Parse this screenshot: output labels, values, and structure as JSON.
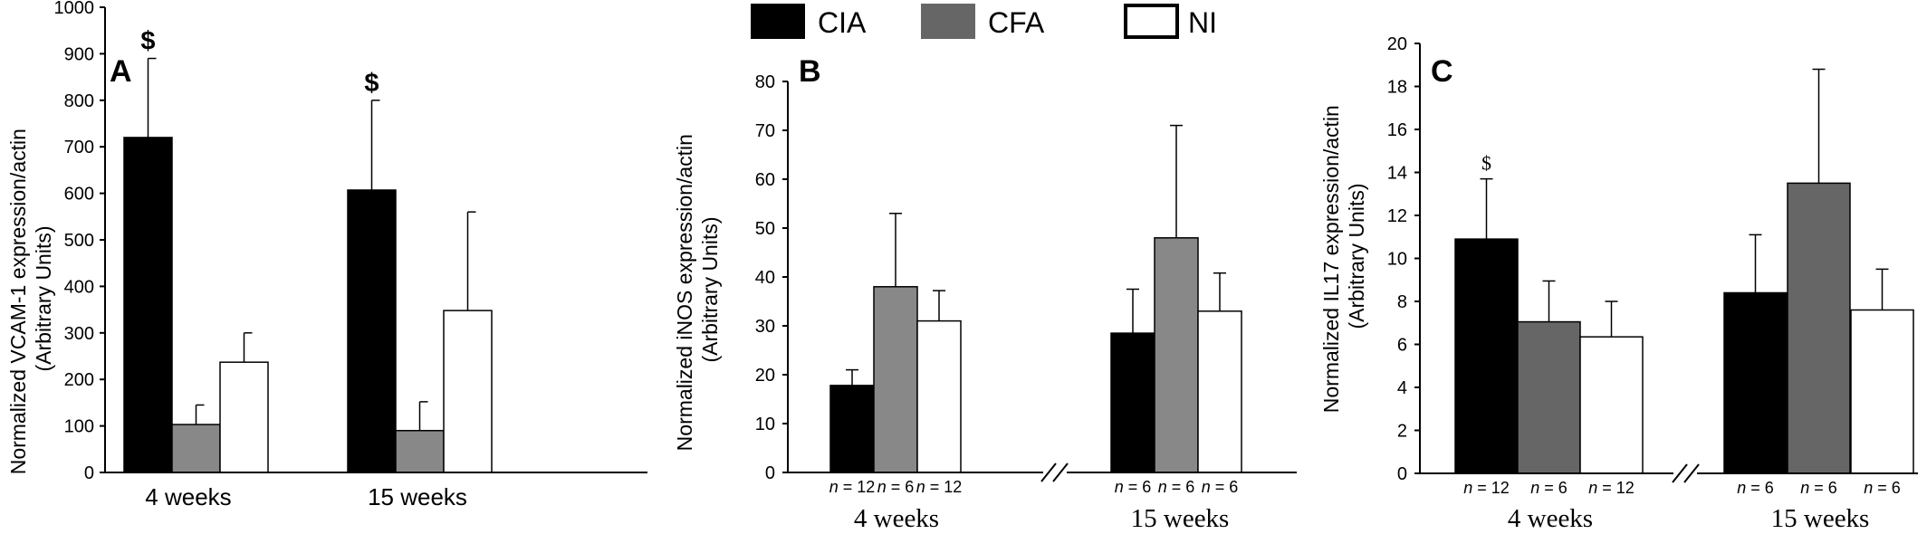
{
  "legend": [
    {
      "label": "CIA",
      "color": "#000000"
    },
    {
      "label": "CFA",
      "color": "#666666"
    },
    {
      "label": "NI",
      "color": "#ffffff"
    }
  ],
  "chart_data": [
    {
      "type": "bar",
      "panel": "A",
      "ylabel_lines": [
        "Normalized VCAM-1 expression/actin",
        "(Arbitrary Units)"
      ],
      "ylim": [
        0,
        1000
      ],
      "yticks": [
        "0",
        "100",
        "200",
        "300",
        "400",
        "500",
        "600",
        "700",
        "800",
        "900",
        "1000"
      ],
      "categories": [
        "4 weeks",
        "15 weeks"
      ],
      "series": [
        {
          "name": "CIA",
          "color": "#000000",
          "values": [
            720,
            607
          ],
          "errors": [
            170,
            193
          ]
        },
        {
          "name": "CFA",
          "color": "#888888",
          "values": [
            103,
            90
          ],
          "errors": [
            42,
            62
          ]
        },
        {
          "name": "NI",
          "color": "#ffffff",
          "values": [
            237,
            348
          ],
          "errors": [
            63,
            212
          ]
        }
      ],
      "significance": [
        {
          "category": 0,
          "series": 0,
          "symbol": "$"
        },
        {
          "category": 1,
          "series": 0,
          "symbol": "$"
        }
      ]
    },
    {
      "type": "bar",
      "panel": "B",
      "ylabel_lines": [
        "Normalized iNOS expression/actin",
        "(Arbitrary Units)"
      ],
      "ylim": [
        0,
        80
      ],
      "yticks": [
        "0",
        "10",
        "20",
        "30",
        "40",
        "50",
        "60",
        "70",
        "80"
      ],
      "categories": [
        "4 weeks",
        "15 weeks"
      ],
      "series": [
        {
          "name": "CIA",
          "color": "#000000",
          "values": [
            17.8,
            28.5
          ],
          "errors": [
            3.2,
            9
          ],
          "n": [
            "12",
            "6"
          ]
        },
        {
          "name": "CFA",
          "color": "#888888",
          "values": [
            38,
            48
          ],
          "errors": [
            15,
            23
          ],
          "n": [
            "6",
            "6"
          ]
        },
        {
          "name": "NI",
          "color": "#ffffff",
          "values": [
            31,
            33
          ],
          "errors": [
            6.2,
            7.8
          ],
          "n": [
            "12",
            "6"
          ]
        }
      ]
    },
    {
      "type": "bar",
      "panel": "C",
      "ylabel_lines": [
        "Normalized IL17 expression/actin",
        "(Arbitrary Units)"
      ],
      "ylim": [
        0,
        20
      ],
      "yticks": [
        "0",
        "2",
        "4",
        "6",
        "8",
        "10",
        "12",
        "14",
        "16",
        "18",
        "20"
      ],
      "categories": [
        "4 weeks",
        "15 weeks"
      ],
      "series": [
        {
          "name": "CIA",
          "color": "#000000",
          "values": [
            10.9,
            8.4
          ],
          "errors": [
            2.8,
            2.7
          ],
          "n": [
            "12",
            "6"
          ]
        },
        {
          "name": "CFA",
          "color": "#666666",
          "values": [
            7.05,
            13.5
          ],
          "errors": [
            1.9,
            5.3
          ],
          "n": [
            "6",
            "6"
          ]
        },
        {
          "name": "NI",
          "color": "#ffffff",
          "values": [
            6.35,
            7.6
          ],
          "errors": [
            1.65,
            1.9
          ],
          "n": [
            "12",
            "6"
          ]
        }
      ],
      "significance": [
        {
          "category": 0,
          "series": 0,
          "symbol": "$"
        }
      ]
    }
  ]
}
